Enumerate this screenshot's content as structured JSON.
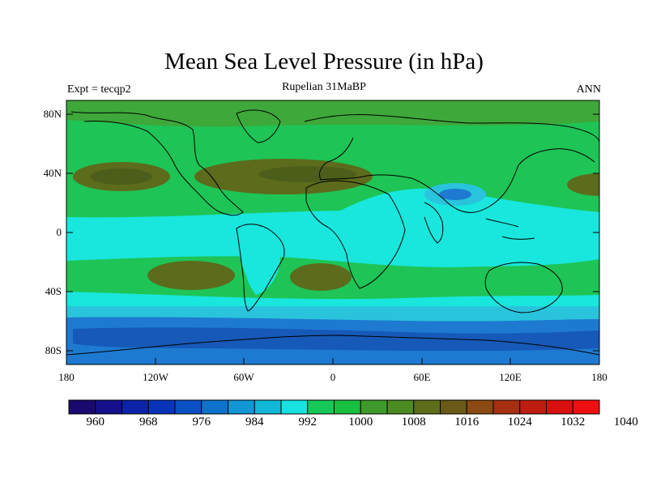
{
  "title": "Mean Sea Level Pressure (in hPa)",
  "subtitle": "Rupelian  31MaBP",
  "left_label": "Expt = tecqp2",
  "right_label": "ANN",
  "y_ticks": [
    "80N",
    "40N",
    "0",
    "40S",
    "80S"
  ],
  "x_ticks": [
    "180",
    "120W",
    "60W",
    "0",
    "60E",
    "120E",
    "180"
  ],
  "colorbar": {
    "colors": [
      "#1a0a6e",
      "#14108a",
      "#0c22a8",
      "#0834b8",
      "#0a50c2",
      "#0c72cc",
      "#1296d6",
      "#12b6d6",
      "#18e2e2",
      "#16c858",
      "#18c040",
      "#3e9a2a",
      "#4c8a22",
      "#5c6e1a",
      "#6a5a18",
      "#8a4a14",
      "#a63010",
      "#be1e10",
      "#d81010",
      "#ee1010"
    ],
    "labels": [
      "960",
      "968",
      "976",
      "984",
      "992",
      "1000",
      "1008",
      "1016",
      "1024",
      "1032",
      "1040"
    ]
  },
  "colors": {
    "ocean_green": "#1ec455",
    "land_green": "#3fbf4a",
    "cyan": "#19e6dc",
    "light_cyan": "#29c4dc",
    "blue": "#1d7ad0",
    "dark_blue": "#1659b8",
    "olive": "#5c6b1c",
    "dark_olive": "#4c5e1a",
    "coast": "#000000"
  }
}
